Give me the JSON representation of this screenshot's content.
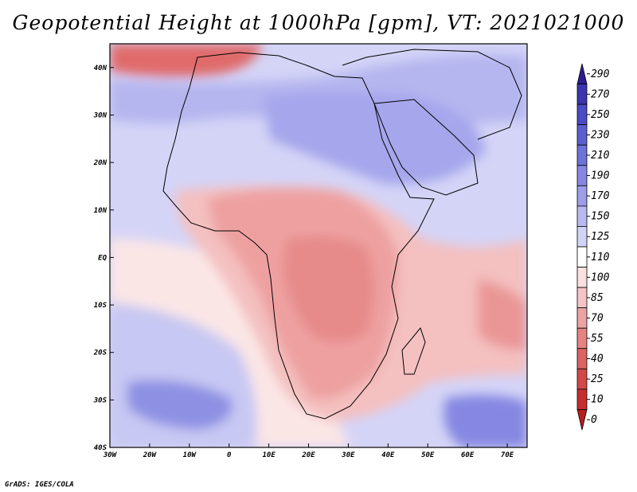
{
  "title": "Geopotential Height at 1000hPa [gpm], VT: 2021021000",
  "credit": "GrADS: IGES/COLA",
  "map": {
    "lon_range": [
      -30,
      75
    ],
    "lat_range": [
      -40,
      45
    ],
    "lat_ticks": [
      {
        "value": 40,
        "label": "40N"
      },
      {
        "value": 30,
        "label": "30N"
      },
      {
        "value": 20,
        "label": "20N"
      },
      {
        "value": 10,
        "label": "10N"
      },
      {
        "value": 0,
        "label": "EQ"
      },
      {
        "value": -10,
        "label": "10S"
      },
      {
        "value": -20,
        "label": "20S"
      },
      {
        "value": -30,
        "label": "30S"
      },
      {
        "value": -40,
        "label": "40S"
      }
    ],
    "lon_ticks": [
      {
        "value": -30,
        "label": "30W"
      },
      {
        "value": -20,
        "label": "20W"
      },
      {
        "value": -10,
        "label": "10W"
      },
      {
        "value": 0,
        "label": "0"
      },
      {
        "value": 10,
        "label": "10E"
      },
      {
        "value": 20,
        "label": "20E"
      },
      {
        "value": 30,
        "label": "30E"
      },
      {
        "value": 40,
        "label": "40E"
      },
      {
        "value": 50,
        "label": "50E"
      },
      {
        "value": 60,
        "label": "60E"
      },
      {
        "value": 70,
        "label": "70E"
      }
    ]
  },
  "colorbar": {
    "labels": [
      "290",
      "270",
      "250",
      "230",
      "210",
      "190",
      "170",
      "150",
      "125",
      "110",
      "100",
      "85",
      "70",
      "55",
      "40",
      "25",
      "10",
      "0"
    ],
    "colors": [
      "#2d1d8f",
      "#3b36b0",
      "#4a4bc6",
      "#5c5fd2",
      "#6e72d9",
      "#8587e2",
      "#9d9ee9",
      "#b8b9f1",
      "#d2d3f7",
      "#ffffff",
      "#fbe0e0",
      "#f5c4c4",
      "#eea3a3",
      "#e58383",
      "#dc6464",
      "#d24848",
      "#c72f2f",
      "#b71d1d"
    ]
  },
  "colors": {
    "land_outline": "#000000"
  }
}
